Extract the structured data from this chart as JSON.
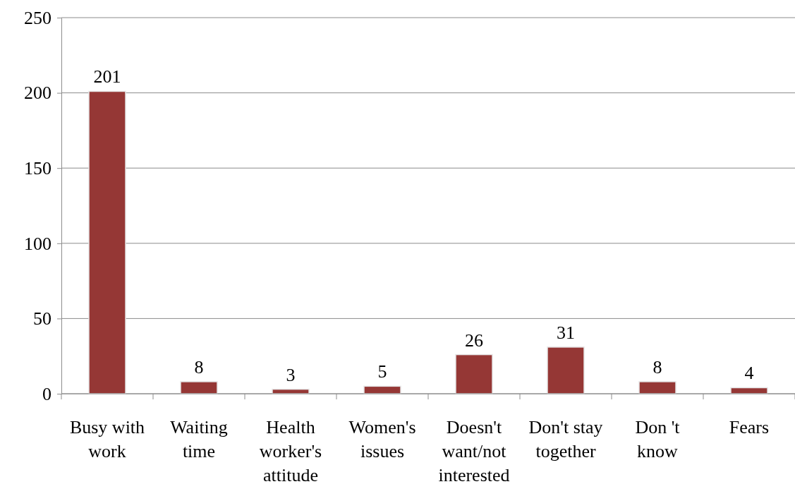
{
  "chart_data": {
    "type": "bar",
    "categories": [
      "Busy with work",
      "Waiting time",
      "Health worker's attitude",
      "Women's issues",
      "Doesn't want/not interested",
      "Don't stay together",
      "Don 't know",
      "Fears"
    ],
    "values": [
      201,
      8,
      3,
      5,
      26,
      31,
      8,
      4
    ],
    "color": "#953735",
    "ylim": [
      0,
      250
    ],
    "yticks": [
      0,
      50,
      100,
      150,
      200,
      250
    ],
    "grid": "y",
    "data_labels": true
  }
}
